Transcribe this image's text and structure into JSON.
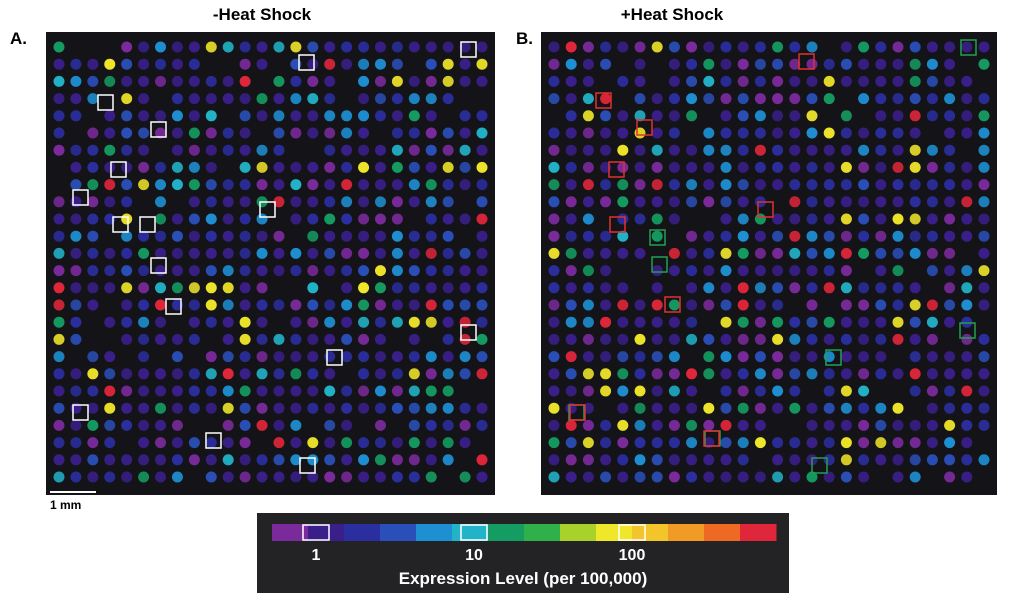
{
  "panels": [
    {
      "label": "A.",
      "title": "-Heat Shock"
    },
    {
      "label": "B.",
      "title": "+Heat Shock"
    }
  ],
  "scale_bar": "1 mm",
  "colorbar": {
    "title": "Expression Level (per 100,000)",
    "ticks": [
      1,
      10,
      100
    ],
    "colors": [
      "#7b2a9c",
      "#3a1f8a",
      "#2b2e9e",
      "#2a4fb8",
      "#1e8fd2",
      "#22b3c8",
      "#159c62",
      "#2fb04a",
      "#a8d12a",
      "#f0e62a",
      "#f4c52a",
      "#f29a26",
      "#ee6a24",
      "#e0263a"
    ]
  }
}
